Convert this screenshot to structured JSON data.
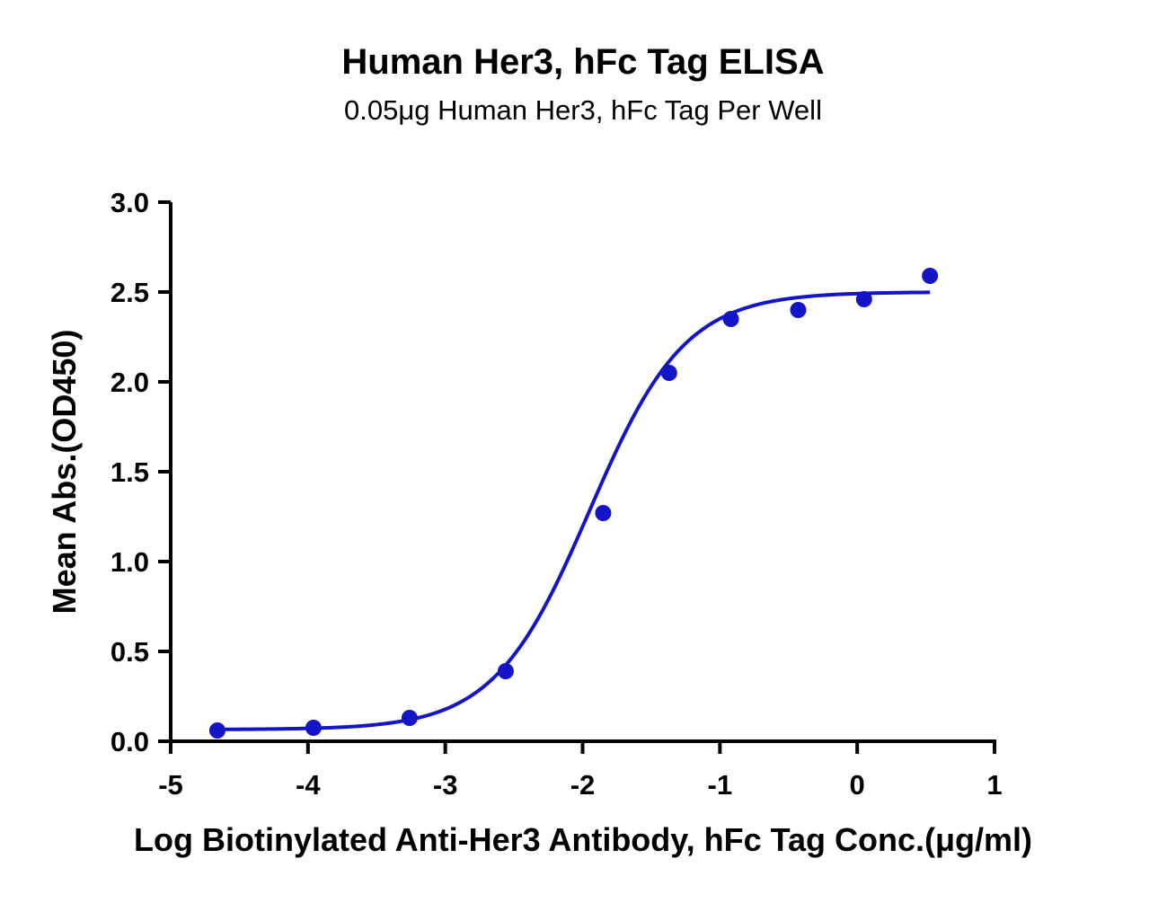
{
  "chart_data": {
    "type": "scatter",
    "title": "Human Her3, hFc Tag ELISA",
    "subtitle": "0.05μg Human Her3, hFc Tag Per Well",
    "xlabel": "Log Biotinylated Anti-Her3 Antibody, hFc Tag Conc.(μg/ml)",
    "ylabel": "Mean Abs.(OD450)",
    "xlim": [
      -5,
      1
    ],
    "ylim": [
      0,
      3.0
    ],
    "x_ticks": [
      "-5",
      "-4",
      "-3",
      "-2",
      "-1",
      "0",
      "1"
    ],
    "y_ticks": [
      "0.0",
      "0.5",
      "1.0",
      "1.5",
      "2.0",
      "2.5",
      "3.0"
    ],
    "grid": false,
    "legend": "none",
    "series": [
      {
        "color": "#1414C8",
        "x": [
          -4.66,
          -3.96,
          -3.26,
          -2.56,
          -1.85,
          -1.37,
          -0.92,
          -0.43,
          0.05,
          0.53
        ],
        "y": [
          0.06,
          0.075,
          0.13,
          0.39,
          1.27,
          2.05,
          2.35,
          2.4,
          2.46,
          2.59
        ]
      }
    ],
    "fit_curve": {
      "model": "4PL",
      "color": "#1414C8",
      "bottom": 0.065,
      "top": 2.5,
      "logEC50": -1.95,
      "hill": 1.25,
      "x_range": [
        -4.66,
        0.53
      ]
    }
  }
}
